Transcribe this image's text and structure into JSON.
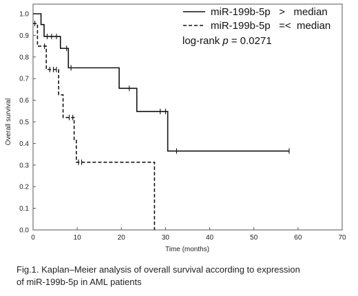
{
  "chart_data": {
    "type": "line",
    "xlabel": "Time (months)",
    "ylabel": "Overall survival",
    "xlim": [
      0,
      70
    ],
    "ylim": [
      0,
      1.0
    ],
    "x_ticks": [
      "0",
      "10",
      "20",
      "30",
      "40",
      "50",
      "60",
      "70"
    ],
    "y_ticks": [
      "0.0",
      "0.1",
      "0.2",
      "0.3",
      "0.4",
      "0.5",
      "0.6",
      "0.7",
      "0.8",
      "0.9",
      "1.0"
    ],
    "legend_position": "top-right",
    "annotation": {
      "prefix": "log-rank ",
      "variable": "p",
      "suffix": " = 0.0271"
    },
    "series": [
      {
        "name": "miR-199b-5p   >   median",
        "style": "solid",
        "color": "#111111",
        "steps": [
          [
            0,
            1.0
          ],
          [
            1.8,
            0.95
          ],
          [
            2.5,
            0.895
          ],
          [
            6.2,
            0.84
          ],
          [
            8.0,
            0.75
          ],
          [
            19.5,
            0.655
          ],
          [
            23.5,
            0.548
          ],
          [
            30.5,
            0.365
          ],
          [
            58.0,
            0.365
          ]
        ],
        "censored": [
          [
            3.2,
            0.895
          ],
          [
            4.2,
            0.895
          ],
          [
            5.3,
            0.895
          ],
          [
            7.6,
            0.84
          ],
          [
            8.6,
            0.75
          ],
          [
            21.8,
            0.655
          ],
          [
            28.8,
            0.548
          ],
          [
            30.0,
            0.548
          ],
          [
            32.5,
            0.365
          ],
          [
            58.0,
            0.365
          ]
        ]
      },
      {
        "name": "miR-199b-5p   =<  median",
        "style": "dashed",
        "color": "#111111",
        "steps": [
          [
            0,
            0.955
          ],
          [
            1.0,
            0.85
          ],
          [
            3.0,
            0.742
          ],
          [
            5.8,
            0.625
          ],
          [
            6.8,
            0.52
          ],
          [
            9.3,
            0.415
          ],
          [
            9.8,
            0.313
          ],
          [
            27.5,
            0.0
          ]
        ],
        "censored": [
          [
            0.4,
            0.955
          ],
          [
            2.6,
            0.85
          ],
          [
            3.8,
            0.742
          ],
          [
            4.6,
            0.742
          ],
          [
            5.3,
            0.742
          ],
          [
            8.2,
            0.52
          ],
          [
            9.0,
            0.52
          ],
          [
            10.3,
            0.313
          ],
          [
            11.0,
            0.313
          ]
        ]
      }
    ]
  },
  "caption": {
    "line1": "Fig.1. Kaplan–Meier analysis of overall survival according to expression",
    "line2": "of miR-199b-5p in AML patients"
  }
}
